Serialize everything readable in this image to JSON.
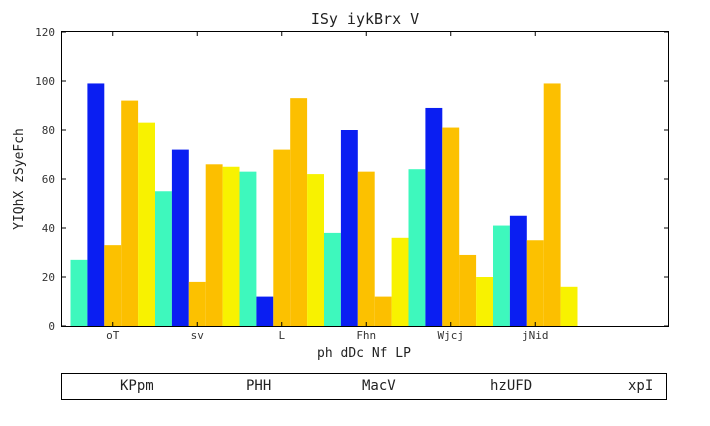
{
  "chart_data": {
    "type": "bar",
    "title": "ISy iykBrx V",
    "xlabel": "ph dDc Nf LP",
    "ylabel": "YIQhX zSyeFch",
    "ylim": [
      0,
      120
    ],
    "yticks": [
      0,
      20,
      40,
      60,
      80,
      100,
      120
    ],
    "grid": false,
    "legend_position": "bottom",
    "categories": [
      "oT",
      "sv",
      "L",
      "Fhn",
      "Wjcj",
      "jNid"
    ],
    "series": [
      {
        "name": "KPpm",
        "color": "#3ef8bd",
        "values": [
          27,
          55,
          63,
          38,
          64,
          41
        ]
      },
      {
        "name": "PHH",
        "color": "#0a1ef2",
        "values": [
          99,
          72,
          12,
          80,
          89,
          45
        ]
      },
      {
        "name": "MacV",
        "color": "#fcc100",
        "values": [
          33,
          18,
          72,
          63,
          81,
          35
        ]
      },
      {
        "name": "hzUFD",
        "color": "#fcbf00",
        "values": [
          92,
          66,
          93,
          12,
          29,
          99
        ]
      },
      {
        "name": "xpI",
        "color": "#f8f200",
        "values": [
          83,
          65,
          62,
          36,
          20,
          16
        ]
      }
    ]
  }
}
